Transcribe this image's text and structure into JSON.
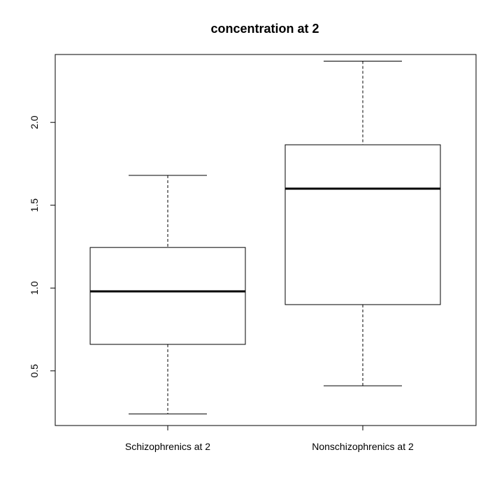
{
  "chart_data": {
    "type": "box",
    "title": "concentration at 2",
    "xlabel": "",
    "ylabel": "",
    "categories": [
      "Schizophrenics at 2",
      "Nonschizophrenics at 2"
    ],
    "boxes": [
      {
        "name": "Schizophrenics at 2",
        "min": 0.24,
        "q1": 0.66,
        "median": 0.98,
        "q3": 1.245,
        "max": 1.68
      },
      {
        "name": "Nonschizophrenics at 2",
        "min": 0.41,
        "q1": 0.9,
        "median": 1.6,
        "q3": 1.865,
        "max": 2.37
      }
    ],
    "yticks": [
      0.5,
      1.0,
      1.5,
      2.0
    ],
    "ytick_labels": [
      "0.5",
      "1.0",
      "1.5",
      "2.0"
    ],
    "ylim": [
      0.17,
      2.41
    ],
    "grid": false,
    "colors": {
      "box_fill": "#ffffff",
      "stroke": "#000000"
    }
  }
}
